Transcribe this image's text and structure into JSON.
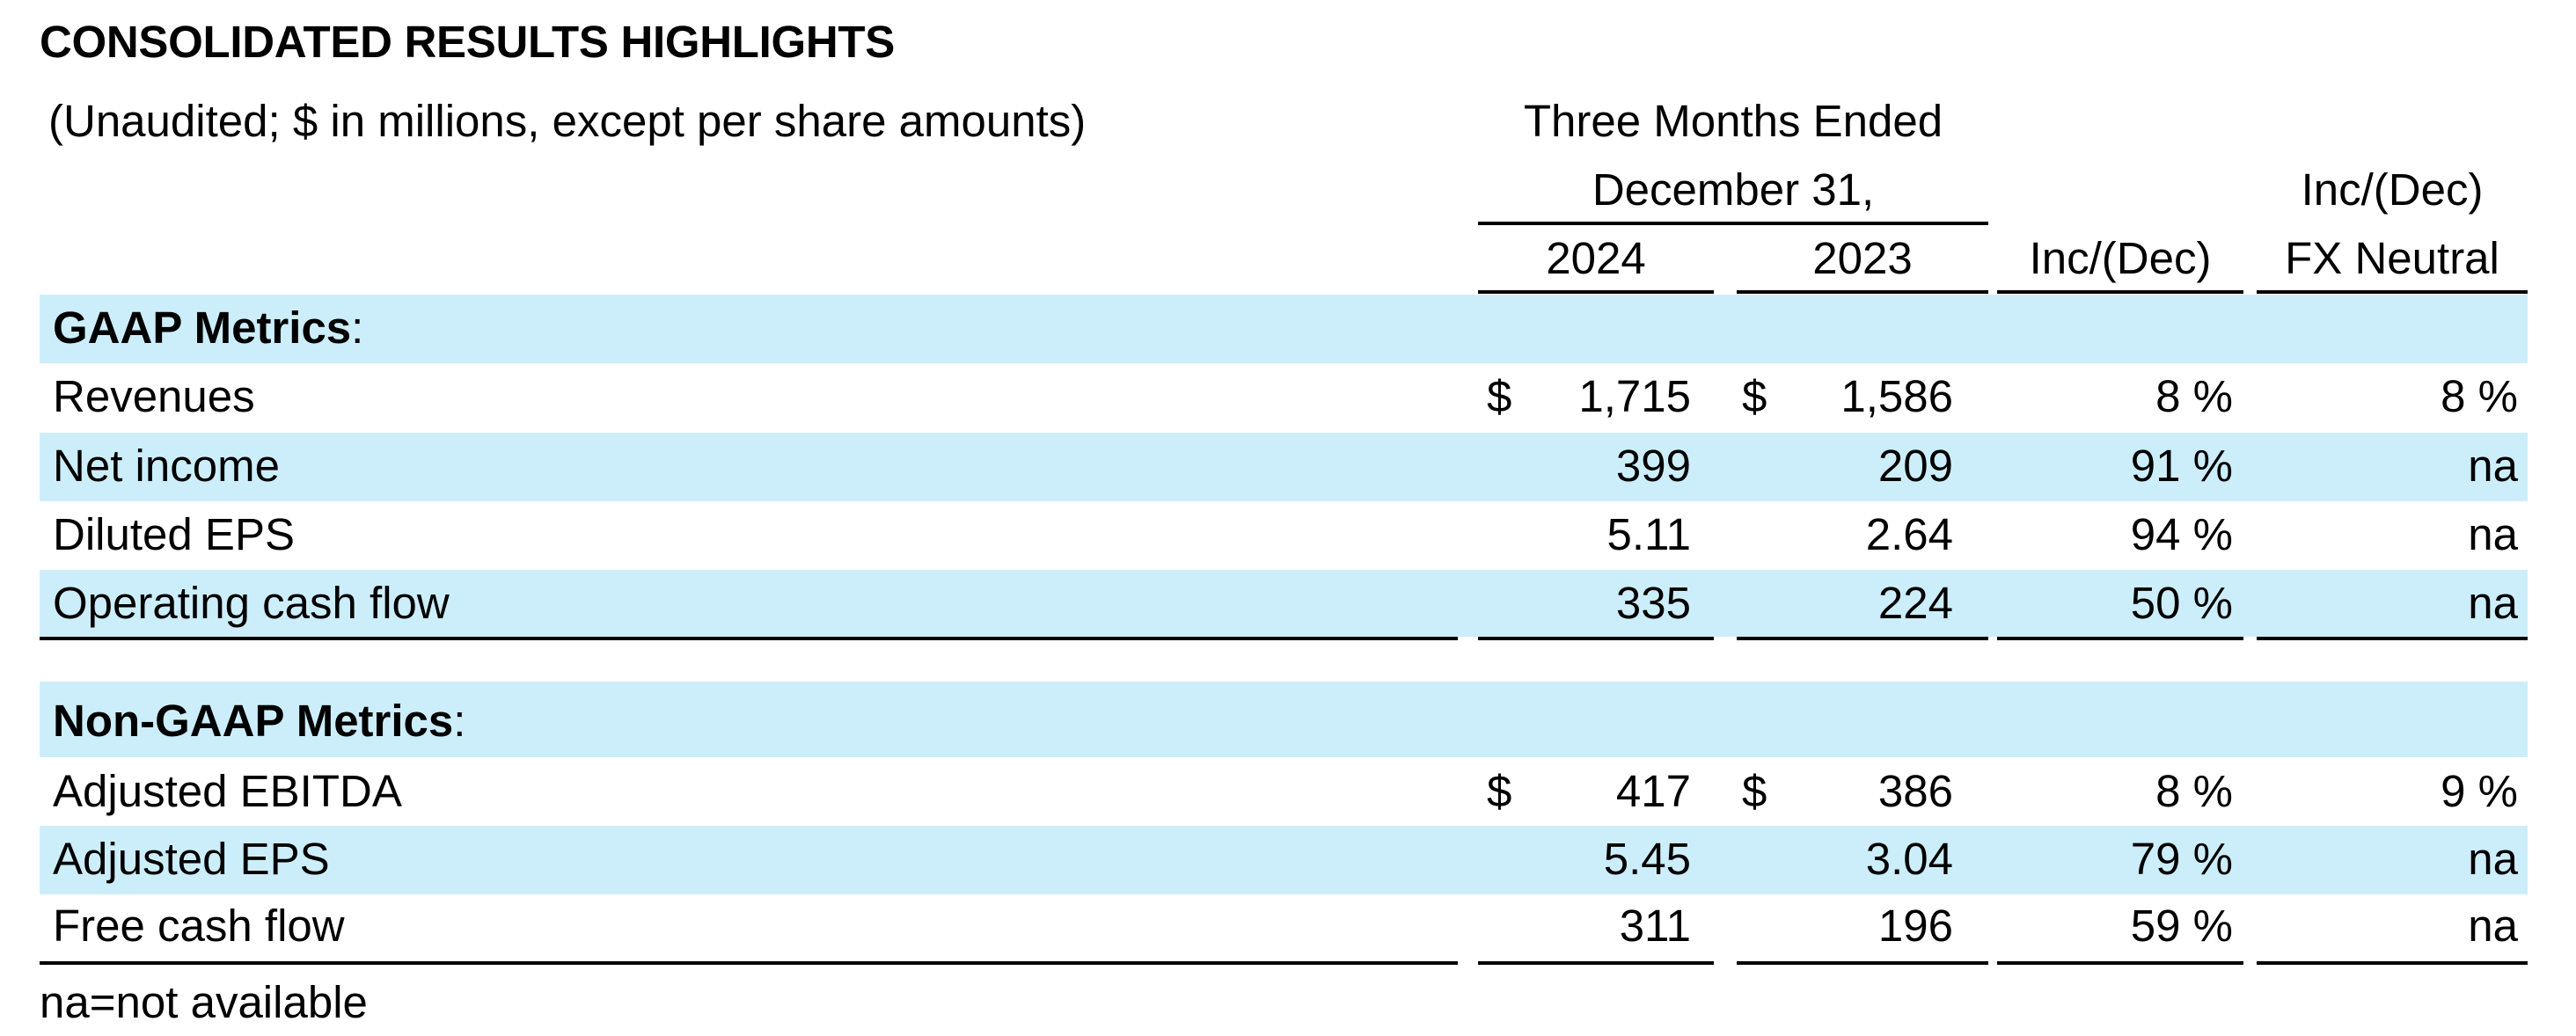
{
  "title": "CONSOLIDATED RESULTS HIGHLIGHTS",
  "subtitle": "(Unaudited; $ in millions, except per share amounts)",
  "header": {
    "period_line1": "Three Months Ended",
    "period_line2": "December 31,",
    "year_current": "2024",
    "year_prior": "2023",
    "change": "Inc/(Dec)",
    "fx_line1": "Inc/(Dec)",
    "fx_line2": "FX Neutral"
  },
  "sections": [
    {
      "name": "GAAP Metrics",
      "suffix": ":",
      "rows": [
        {
          "label": "Revenues",
          "cur_symbol": "$",
          "cur": "1,715",
          "prior_symbol": "$",
          "prior": "1,586",
          "change": "8 %",
          "fx": "8 %"
        },
        {
          "label": "Net income",
          "cur_symbol": "",
          "cur": "399",
          "prior_symbol": "",
          "prior": "209",
          "change": "91 %",
          "fx": "na"
        },
        {
          "label": "Diluted EPS",
          "cur_symbol": "",
          "cur": "5.11",
          "prior_symbol": "",
          "prior": "2.64",
          "change": "94 %",
          "fx": "na"
        },
        {
          "label": "Operating cash flow",
          "cur_symbol": "",
          "cur": "335",
          "prior_symbol": "",
          "prior": "224",
          "change": "50 %",
          "fx": "na"
        }
      ]
    },
    {
      "name": "Non-GAAP Metrics",
      "suffix": ":",
      "rows": [
        {
          "label": "Adjusted EBITDA",
          "cur_symbol": "$",
          "cur": "417",
          "prior_symbol": "$",
          "prior": "386",
          "change": "8 %",
          "fx": "9 %"
        },
        {
          "label": "Adjusted EPS",
          "cur_symbol": "",
          "cur": "5.45",
          "prior_symbol": "",
          "prior": "3.04",
          "change": "79 %",
          "fx": "na"
        },
        {
          "label": "Free cash flow",
          "cur_symbol": "",
          "cur": "311",
          "prior_symbol": "",
          "prior": "196",
          "change": "59 %",
          "fx": "na"
        }
      ]
    }
  ],
  "footnote": "na=not available",
  "colors": {
    "band": "#cceefa",
    "text": "#000000",
    "rule": "#000000"
  }
}
